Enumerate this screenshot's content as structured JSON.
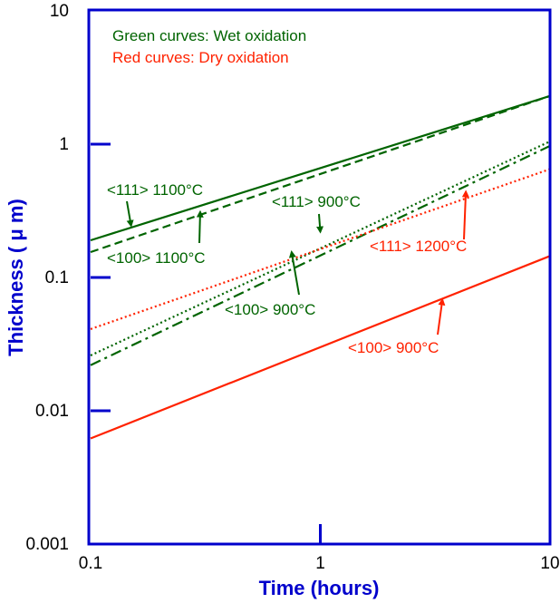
{
  "chart_data": {
    "type": "line",
    "xlabel": "Time (hours)",
    "ylabel": "Thickness ( μ m)",
    "x_scale": "log",
    "y_scale": "log",
    "xlim": [
      0.1,
      10
    ],
    "ylim": [
      0.001,
      10
    ],
    "x_ticks": [
      {
        "value": 0.1,
        "label": "0.1"
      },
      {
        "value": 1,
        "label": "1"
      },
      {
        "value": 10,
        "label": "10"
      }
    ],
    "y_ticks": [
      {
        "value": 0.001,
        "label": "0.001"
      },
      {
        "value": 0.01,
        "label": "0.01"
      },
      {
        "value": 0.1,
        "label": "0.1"
      },
      {
        "value": 1,
        "label": "1"
      },
      {
        "value": 10,
        "label": "10"
      }
    ],
    "legend": [
      {
        "text": "Green curves: Wet oxidation",
        "color": "#006400"
      },
      {
        "text": "Red curves: Dry oxidation",
        "color": "#ff2200"
      }
    ],
    "series": [
      {
        "name": "<111> 1100°C",
        "color": "#006400",
        "dash": "solid",
        "x": [
          0.1,
          10
        ],
        "y": [
          0.19,
          2.3
        ]
      },
      {
        "name": "<100> 1100°C",
        "color": "#006400",
        "dash": "dashed",
        "x": [
          0.1,
          10
        ],
        "y": [
          0.155,
          2.3
        ]
      },
      {
        "name": "<111> 900°C",
        "color": "#006400",
        "dash": "dotted",
        "x": [
          0.1,
          10
        ],
        "y": [
          0.026,
          1.05
        ]
      },
      {
        "name": "<100> 900°C",
        "color": "#006400",
        "dash": "dashdot",
        "x": [
          0.1,
          10
        ],
        "y": [
          0.022,
          0.97
        ]
      },
      {
        "name": "<111> 1200°C",
        "color": "#ff2200",
        "dash": "dotted",
        "x": [
          0.1,
          10
        ],
        "y": [
          0.041,
          0.65
        ]
      },
      {
        "name": "<100> 900°C",
        "color": "#ff2200",
        "dash": "solid",
        "x": [
          0.1,
          10
        ],
        "y": [
          0.0062,
          0.145
        ]
      }
    ],
    "annotations": [
      {
        "text": "<111> 1100°C",
        "color": "#006400",
        "arrow_to": [
          0.15,
          0.245
        ]
      },
      {
        "text": "<100> 1100°C",
        "color": "#006400",
        "arrow_to": [
          0.3,
          0.31
        ]
      },
      {
        "text": "<111> 900°C",
        "color": "#006400",
        "arrow_to": [
          1.0,
          0.22
        ]
      },
      {
        "text": "<100> 900°C",
        "color": "#006400",
        "arrow_to": [
          0.75,
          0.155
        ]
      },
      {
        "text": "<111> 1200°C",
        "color": "#ff2200",
        "arrow_to": [
          4.3,
          0.44
        ]
      },
      {
        "text": "<100> 900°C",
        "color": "#ff2200",
        "arrow_to": [
          3.4,
          0.068
        ]
      }
    ],
    "grid": false
  }
}
